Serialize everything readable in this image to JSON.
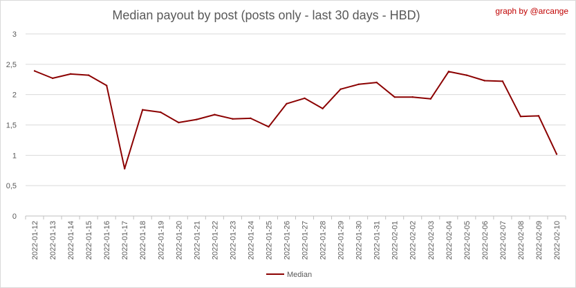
{
  "chart_data": {
    "type": "line",
    "title": "Median payout by post (posts only - last 30 days - HBD)",
    "credit": "graph by @arcange",
    "x": [
      "2022-01-12",
      "2022-01-13",
      "2022-01-14",
      "2022-01-15",
      "2022-01-16",
      "2022-01-17",
      "2022-01-18",
      "2022-01-19",
      "2022-01-20",
      "2022-01-21",
      "2022-01-22",
      "2022-01-23",
      "2022-01-24",
      "2022-01-25",
      "2022-01-26",
      "2022-01-27",
      "2022-01-28",
      "2022-01-29",
      "2022-01-30",
      "2022-01-31",
      "2022-02-01",
      "2022-02-02",
      "2022-02-03",
      "2022-02-04",
      "2022-02-05",
      "2022-02-06",
      "2022-02-07",
      "2022-02-08",
      "2022-02-09",
      "2022-02-10"
    ],
    "series": [
      {
        "name": "Median",
        "color": "#8b0000",
        "values": [
          2.39,
          2.27,
          2.34,
          2.32,
          2.15,
          0.78,
          1.75,
          1.71,
          1.54,
          1.59,
          1.67,
          1.6,
          1.61,
          1.47,
          1.85,
          1.94,
          1.77,
          2.09,
          2.17,
          2.2,
          1.96,
          1.96,
          1.93,
          2.38,
          2.32,
          2.23,
          2.22,
          1.64,
          1.65,
          1.02
        ]
      }
    ],
    "ylim": [
      0,
      3
    ],
    "yticks": [
      "0",
      "0,5",
      "1",
      "1,5",
      "2",
      "2,5",
      "3"
    ],
    "ytick_values": [
      0,
      0.5,
      1,
      1.5,
      2,
      2.5,
      3
    ],
    "grid": true,
    "legend_position": "bottom"
  }
}
